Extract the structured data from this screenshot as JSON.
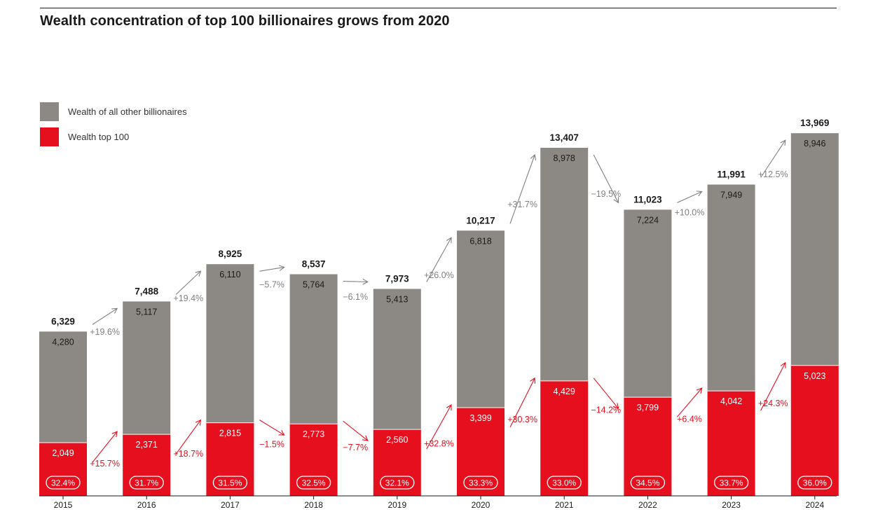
{
  "title": "Wealth concentration of top 100 billionaires grows from 2020",
  "colors": {
    "others": "#8c8984",
    "top100": "#e60f1e",
    "text": "#1a1a1a",
    "change_gray": "#808080",
    "change_red": "#e60f1e"
  },
  "legend": [
    {
      "label": "Wealth of all other billionaires",
      "color": "#8c8984"
    },
    {
      "label": "Wealth top 100",
      "color": "#e60f1e"
    }
  ],
  "chart_data": {
    "type": "bar",
    "stacked": true,
    "categories": [
      "2015",
      "2016",
      "2017",
      "2018",
      "2019",
      "2020",
      "2021",
      "2022",
      "2023",
      "2024"
    ],
    "series": [
      {
        "name": "Wealth top 100",
        "values": [
          2049,
          2371,
          2815,
          2773,
          2560,
          3399,
          4429,
          3799,
          4042,
          5023
        ]
      },
      {
        "name": "Wealth of all other billionaires",
        "values": [
          4280,
          5117,
          6110,
          5764,
          5413,
          6818,
          8978,
          7224,
          7949,
          8946
        ]
      }
    ],
    "totals": [
      "6,329",
      "7,488",
      "8,925",
      "8,537",
      "7,973",
      "10,217",
      "13,407",
      "11,023",
      "11,991",
      "13,969"
    ],
    "top100_labels": [
      "2,049",
      "2,371",
      "2,815",
      "2,773",
      "2,560",
      "3,399",
      "4,429",
      "3,799",
      "4,042",
      "5,023"
    ],
    "others_labels": [
      "4,280",
      "5,117",
      "6,110",
      "5,764",
      "5,413",
      "6,818",
      "8,978",
      "7,224",
      "7,949",
      "8,946"
    ],
    "shares": [
      "32.4%",
      "31.7%",
      "31.5%",
      "32.5%",
      "32.1%",
      "33.3%",
      "33.0%",
      "34.5%",
      "33.7%",
      "36.0%"
    ],
    "others_changes": [
      "+19.6%",
      "+19.4%",
      "−5.7%",
      "−6.1%",
      "+26.0%",
      "+31.7%",
      "−19.5%",
      "+10.0%",
      "+12.5%"
    ],
    "top100_changes": [
      "+15.7%",
      "+18.7%",
      "−1.5%",
      "−7.7%",
      "+32.8%",
      "+30.3%",
      "−14.2%",
      "+6.4%",
      "+24.3%"
    ],
    "ylim": [
      0,
      14500
    ],
    "legend_position": "top-left",
    "grid": false
  }
}
